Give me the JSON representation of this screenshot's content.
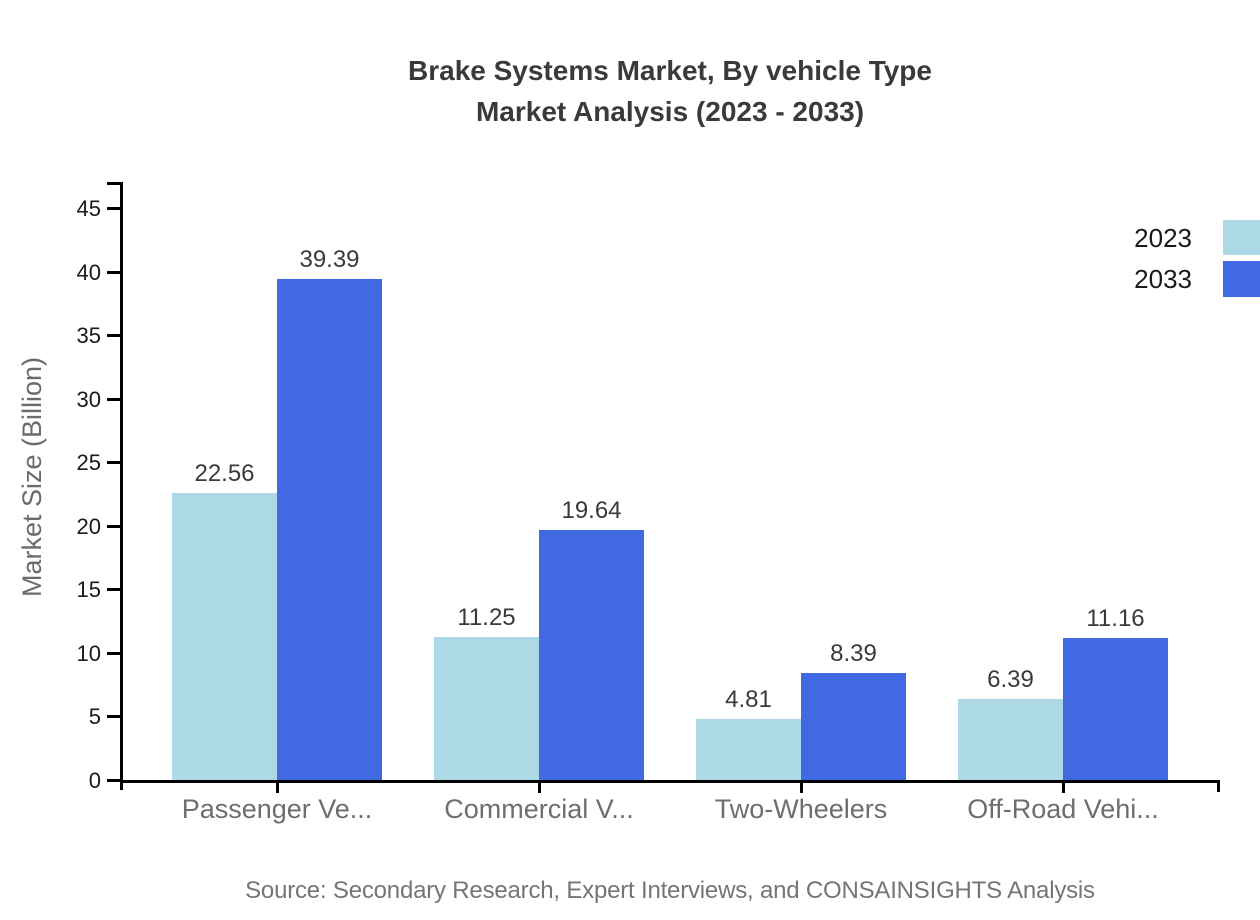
{
  "title": {
    "line1": "Brake Systems Market, By vehicle Type",
    "line2": "Market Analysis (2023 - 2033)"
  },
  "chart_data": {
    "type": "bar",
    "categories": [
      "Passenger Ve...",
      "Commercial V...",
      "Two-Wheelers",
      "Off-Road Vehi..."
    ],
    "series": [
      {
        "name": "2023",
        "color": "#ADD8E6",
        "values": [
          22.56,
          11.25,
          4.81,
          6.39
        ]
      },
      {
        "name": "2033",
        "color": "#4169E1",
        "values": [
          39.39,
          19.64,
          8.39,
          11.16
        ]
      }
    ],
    "title": "Brake Systems Market, By vehicle Type Market Analysis (2023 - 2033)",
    "xlabel": "",
    "ylabel": "Market Size (Billion)",
    "ylim": [
      0,
      45
    ],
    "yticks": [
      0,
      5,
      10,
      15,
      20,
      25,
      30,
      35,
      40,
      45
    ],
    "grid": false,
    "legend_position": "right",
    "value_labels": true
  },
  "source": {
    "text": "Source: Secondary Research, Expert Interviews, and CONSAINSIGHTS Analysis"
  },
  "colors": {
    "background": "#ffffff",
    "axis": "#000000",
    "title_text": "#3a3a3a",
    "category_text": "#6e6e6e",
    "tick_text": "#1a1a1a",
    "value_text": "#3a3a3c",
    "ylabel_text": "#6b6b6b",
    "source_text": "#757575",
    "series_2023": "#ADD8E6",
    "series_2033": "#4169E1"
  }
}
